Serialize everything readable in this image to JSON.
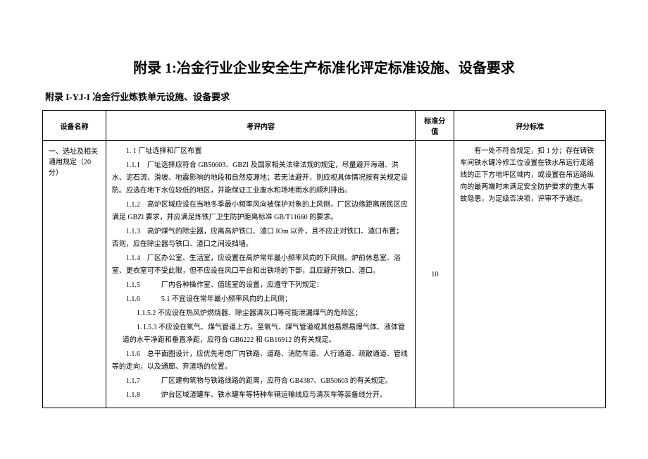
{
  "main_title": "附录 1:冶金行业企业安全生产标准化评定标准设施、设备要求",
  "sub_title": "附录 I-YJ-I 冶金行业炼铁单元设施、设备要求",
  "headers": {
    "col1": "设备名称",
    "col2": "考评内容",
    "col3": "标准分值",
    "col4": "评分标准"
  },
  "row1": {
    "name": "一、选址及相关通用规定（20分）",
    "content": {
      "p1": "1. 1 厂址选择和厂区布置",
      "p2": "1.1.1　厂址选择应符合 GB50603、GBZl 及国家相关法律法规的规定，尽量避开海潮、洪水、泥石流、滑坡、地震影响的地段和自然疫源地；若无法避开，则应视具体情况按有关规定设防。应选在地下水位较低的地区，并能保证工业废水和场地雨水的顺利排出。",
      "p3": "1.1.2　高炉区域应设在当地冬季最小频率风向被保护对象的上风侧，厂区边缘距离居民区应满足 GBZl 要求，并应满足炼铁厂卫生防护距离标准 GB/T11660 的要求。",
      "p4": "1.1.3　高炉煤气的除尘器，应离高炉铁口、渣口 IOm 以外，且不应正对铁口、渣口布置；否则，应在除尘器与铁口、渣口之间设挡墙。",
      "p5": "1.1.4　厂区办公室、生活室，应设置在高炉常年最小频率风向的下风侧。炉前休息室、浴室、更衣室可不受此限，但不应设在风口平台和出铁场的下部，且应避开铁口、渣口。",
      "p6": "1.1.5　　　厂内各种操作室、值班室的设置，应遵守下列规定：",
      "p7": "1.1.6　　　5.1 不宜设在常年最小频率风向的上风侧；",
      "p8": "1.1.5.2 不应设在热风炉燃烧器、除尘器清灰口等可能泄漏煤气的危险区；",
      "p9": "1. L5.3 不应设在氧气、煤气管道上方。至氧气、煤气管道或其他易燃易爆气体、液体管道的水平净距和垂直净距，应符合 GB6222 和 GB16912 的有关规定。",
      "p10": "1.1.6　总平面图设计，应优先考虑厂内铁路、道路、消防车道、人行通道、疏散通道、管线等的走向，以及通廊、弃渣场的位置。",
      "p11": "1.1.7　　　厂区建构筑物与铁路线路的距离，应符合 GB4387、GB50603 的有关规定。",
      "p12": "1.1.8　　　炉台区域渣罐车、铁水罐车等特种车辆运输线应与清灰车等装备线分开。"
    },
    "score": "10",
    "criteria": "有一处不符合规定，扣 1 分；存在铸铁车间铁水罐冷修工位设置在铁水吊运行走路线的正下方地坪区域内，或设置在吊运路纵向的最两端时未满足安全防护要求的重大事故隐患，为定级否决项，评审不予通过。"
  }
}
